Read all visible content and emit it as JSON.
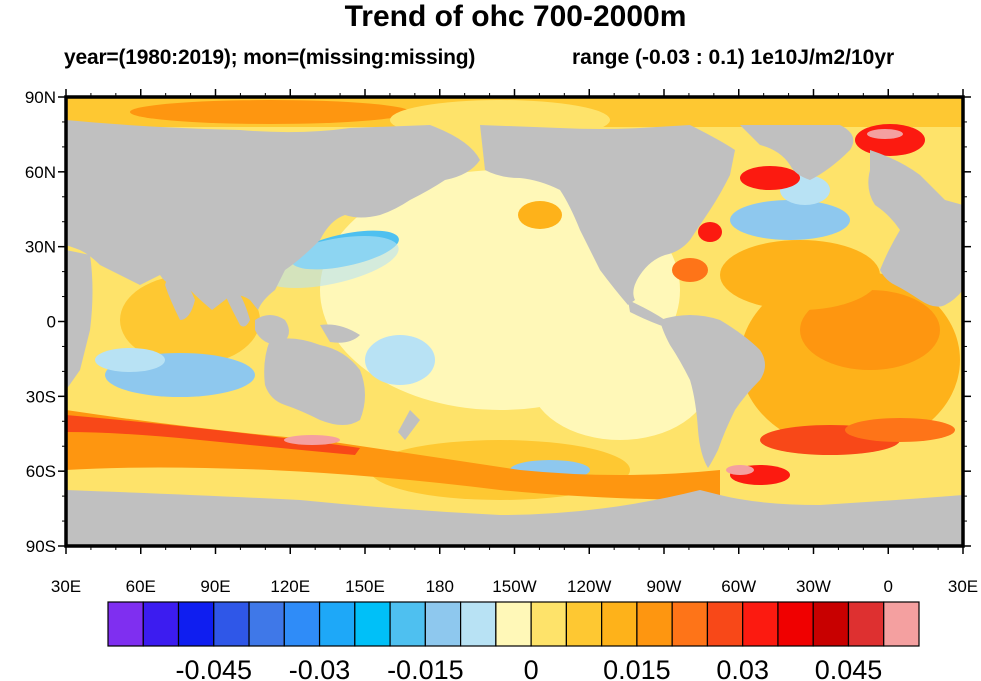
{
  "title": "Trend of ohc 700-2000m",
  "subtitle_left": "year=(1980:2019); mon=(missing:missing)",
  "subtitle_right": "range (-0.03 : 0.1) 1e10J/m2/10yr",
  "map": {
    "lat_labels": [
      "90N",
      "60N",
      "30N",
      "0",
      "30S",
      "60S",
      "90S"
    ],
    "lon_labels": [
      "30E",
      "60E",
      "90E",
      "120E",
      "150E",
      "180",
      "150W",
      "120W",
      "90W",
      "60W",
      "30W",
      "0",
      "30E"
    ],
    "land_color": "#c0c0c0"
  },
  "colorbar": {
    "colors": [
      "#7f2ff0",
      "#3c1cf0",
      "#0f1ef0",
      "#2f57e8",
      "#3f78e8",
      "#2f8cf8",
      "#1ea8f8",
      "#00c0f8",
      "#4ec0f0",
      "#8ec8ee",
      "#b8e2f4",
      "#fff8b8",
      "#fee36a",
      "#fec832",
      "#feb21a",
      "#fe9610",
      "#fe7418",
      "#f84818",
      "#fc1a10",
      "#f00000",
      "#c80000",
      "#de3030",
      "#f4a0a0"
    ],
    "labels": [
      "-0.045",
      "-0.03",
      "-0.015",
      "0",
      "0.015",
      "0.03",
      "0.045"
    ]
  }
}
